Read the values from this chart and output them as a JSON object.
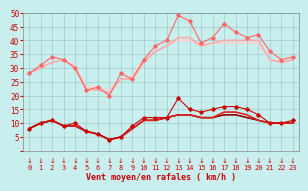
{
  "x": [
    0,
    1,
    2,
    3,
    4,
    5,
    6,
    7,
    8,
    9,
    10,
    11,
    12,
    13,
    14,
    15,
    16,
    17,
    18,
    19,
    20,
    21,
    22,
    23
  ],
  "rafales_jagged": [
    28,
    31,
    34,
    33,
    30,
    22,
    23,
    20,
    28,
    26,
    33,
    38,
    40,
    49,
    47,
    39,
    41,
    46,
    43,
    41,
    42,
    36,
    33,
    34
  ],
  "rafales_smooth1": [
    28,
    30,
    32,
    33,
    30,
    22,
    22,
    21,
    26,
    26,
    32,
    36,
    38,
    41,
    41,
    38,
    39,
    40,
    40,
    40,
    40,
    33,
    32,
    33
  ],
  "rafales_smooth2": [
    28,
    30,
    32,
    33,
    31,
    23,
    23,
    22,
    26,
    27,
    33,
    36,
    38,
    40,
    40,
    38,
    39,
    39,
    39,
    39,
    39,
    33,
    32,
    33
  ],
  "vent_jagged": [
    8,
    10,
    11,
    9,
    10,
    7,
    6,
    4,
    5,
    9,
    12,
    12,
    12,
    19,
    15,
    14,
    15,
    16,
    16,
    15,
    13,
    10,
    10,
    11
  ],
  "vent_smooth1": [
    8,
    10,
    11,
    9,
    9,
    7,
    6,
    4,
    5,
    8,
    11,
    11,
    12,
    13,
    13,
    12,
    12,
    14,
    14,
    13,
    11,
    10,
    10,
    10
  ],
  "vent_smooth2": [
    8,
    10,
    11,
    9,
    9,
    7,
    6,
    4,
    5,
    8,
    11,
    11,
    12,
    13,
    13,
    12,
    12,
    13,
    13,
    12,
    11,
    10,
    10,
    10
  ],
  "vent_smooth3": [
    8,
    10,
    11,
    9,
    9,
    7,
    6,
    4,
    5,
    8,
    11,
    11,
    12,
    13,
    13,
    12,
    12,
    13,
    13,
    12,
    11,
    10,
    10,
    10
  ],
  "bg_color": "#c8eeed",
  "grid_color": "#a0cccc",
  "xlabel": "Vent moyen/en rafales ( km/h )",
  "ylim": [
    0,
    50
  ],
  "xlim": [
    -0.5,
    23.5
  ],
  "c_r_jagged": "#ff6666",
  "c_r_smooth1": "#ffaaaa",
  "c_r_smooth2": "#ffcccc",
  "c_v_jagged": "#cc0000",
  "c_v_smooth1": "#dd2222",
  "c_v_smooth2": "#990000",
  "c_v_smooth3": "#770000",
  "yticks": [
    0,
    5,
    10,
    15,
    20,
    25,
    30,
    35,
    40,
    45,
    50
  ]
}
